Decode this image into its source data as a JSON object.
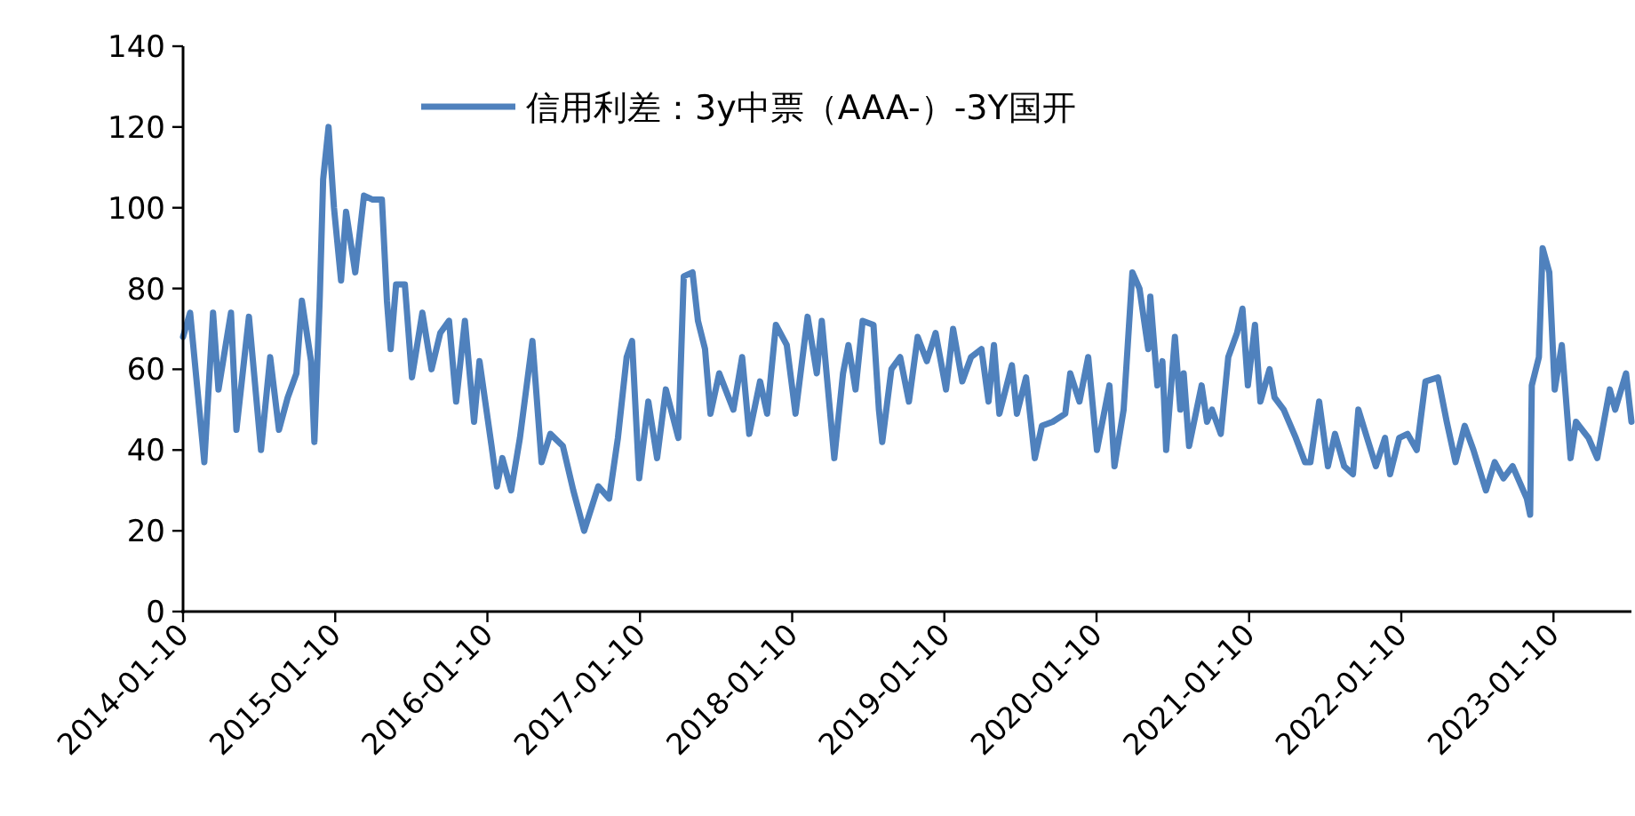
{
  "chart_data": {
    "type": "line",
    "legend": "top",
    "x": [
      "2014-01-10",
      "2014-01-27",
      "2014-03-02",
      "2014-03-23",
      "2014-04-05",
      "2014-05-05",
      "2014-05-18",
      "2014-06-17",
      "2014-07-16",
      "2014-08-07",
      "2014-08-28",
      "2014-09-18",
      "2014-10-09",
      "2014-10-22",
      "2014-11-13",
      "2014-11-21",
      "2014-12-04",
      "2014-12-12",
      "2014-12-25",
      "2015-01-07",
      "2015-01-24",
      "2015-02-05",
      "2015-02-27",
      "2015-03-20",
      "2015-04-10",
      "2015-05-02",
      "2015-05-14",
      "2015-05-23",
      "2015-06-05",
      "2015-06-26",
      "2015-07-13",
      "2015-08-07",
      "2015-08-29",
      "2015-09-19",
      "2015-10-10",
      "2015-10-27",
      "2015-11-17",
      "2015-12-09",
      "2015-12-22",
      "2016-01-20",
      "2016-02-02",
      "2016-02-15",
      "2016-03-07",
      "2016-03-28",
      "2016-04-27",
      "2016-05-19",
      "2016-06-09",
      "2016-07-09",
      "2016-08-03",
      "2016-08-29",
      "2016-10-02",
      "2016-10-28",
      "2016-11-18",
      "2016-12-09",
      "2016-12-22",
      "2017-01-08",
      "2017-01-30",
      "2017-02-20",
      "2017-03-13",
      "2017-04-12",
      "2017-04-25",
      "2017-05-16",
      "2017-05-29",
      "2017-06-15",
      "2017-06-28",
      "2017-07-19",
      "2017-08-22",
      "2017-09-12",
      "2017-09-29",
      "2017-10-25",
      "2017-11-11",
      "2017-12-02",
      "2017-12-28",
      "2018-01-18",
      "2018-02-16",
      "2018-03-10",
      "2018-03-22",
      "2018-04-21",
      "2018-05-12",
      "2018-05-25",
      "2018-06-11",
      "2018-06-28",
      "2018-07-24",
      "2018-08-06",
      "2018-08-14",
      "2018-09-05",
      "2018-09-26",
      "2018-10-17",
      "2018-11-07",
      "2018-11-29",
      "2018-12-20",
      "2019-01-14",
      "2019-01-31",
      "2019-02-22",
      "2019-03-15",
      "2019-04-09",
      "2019-04-26",
      "2019-05-09",
      "2019-05-22",
      "2019-06-21",
      "2019-07-03",
      "2019-07-25",
      "2019-08-15",
      "2019-09-01",
      "2019-09-27",
      "2019-10-27",
      "2019-11-08",
      "2019-11-30",
      "2019-12-21",
      "2020-01-11",
      "2020-02-10",
      "2020-02-22",
      "2020-03-15",
      "2020-04-05",
      "2020-04-22",
      "2020-05-13",
      "2020-05-18",
      "2020-06-04",
      "2020-06-16",
      "2020-06-25",
      "2020-07-16",
      "2020-07-29",
      "2020-08-06",
      "2020-08-19",
      "2020-09-18",
      "2020-10-01",
      "2020-10-13",
      "2020-11-03",
      "2020-11-21",
      "2020-12-12",
      "2020-12-25",
      "2021-01-07",
      "2021-01-24",
      "2021-02-06",
      "2021-02-28",
      "2021-03-12",
      "2021-04-03",
      "2021-05-02",
      "2021-05-24",
      "2021-06-06",
      "2021-06-27",
      "2021-07-18",
      "2021-08-04",
      "2021-08-26",
      "2021-09-16",
      "2021-09-29",
      "2021-10-20",
      "2021-11-10",
      "2021-12-02",
      "2021-12-14",
      "2022-01-05",
      "2022-01-25",
      "2022-02-16",
      "2022-03-09",
      "2022-04-08",
      "2022-04-29",
      "2022-05-20",
      "2022-06-11",
      "2022-07-02",
      "2022-08-01",
      "2022-08-22",
      "2022-09-12",
      "2022-10-04",
      "2022-11-07",
      "2022-11-15",
      "2022-11-19",
      "2022-12-06",
      "2022-12-15",
      "2022-12-31",
      "2023-01-13",
      "2023-01-30",
      "2023-02-20",
      "2023-03-05",
      "2023-04-04",
      "2023-04-25",
      "2023-05-25",
      "2023-06-07",
      "2023-07-03",
      "2023-07-16"
    ],
    "series": [
      {
        "name": "信用利差：3y中票（AAA-）-3Y国开",
        "color": "#4f81bd",
        "values": [
          68,
          74,
          37,
          74,
          55,
          74,
          45,
          73,
          40,
          63,
          45,
          53,
          59,
          77,
          62,
          42,
          78,
          107,
          120,
          100,
          82,
          99,
          84,
          103,
          102,
          102,
          77,
          65,
          81,
          81,
          58,
          74,
          60,
          69,
          72,
          52,
          72,
          47,
          62,
          41,
          31,
          38,
          30,
          43,
          67,
          37,
          44,
          41,
          30,
          20,
          31,
          28,
          43,
          63,
          67,
          33,
          52,
          38,
          55,
          43,
          83,
          84,
          72,
          65,
          49,
          59,
          50,
          63,
          44,
          57,
          49,
          71,
          66,
          49,
          73,
          59,
          72,
          38,
          59,
          66,
          55,
          72,
          71,
          50,
          42,
          60,
          63,
          52,
          68,
          62,
          69,
          55,
          70,
          57,
          63,
          65,
          52,
          66,
          49,
          61,
          49,
          58,
          38,
          46,
          47,
          49,
          59,
          52,
          63,
          40,
          56,
          36,
          50,
          84,
          80,
          65,
          78,
          56,
          62,
          40,
          68,
          50,
          59,
          41,
          56,
          47,
          50,
          44,
          63,
          69,
          75,
          56,
          71,
          52,
          60,
          53,
          50,
          43,
          37,
          37,
          52,
          36,
          44,
          36,
          34,
          50,
          43,
          36,
          43,
          34,
          43,
          44,
          40,
          57,
          58,
          47,
          37,
          46,
          40,
          30,
          37,
          33,
          36,
          28,
          24,
          56,
          63,
          90,
          84,
          55,
          66,
          38,
          47,
          43,
          38,
          55,
          50,
          59,
          47
        ]
      }
    ],
    "xlim": [
      "2014-01-10",
      "2023-07-16"
    ],
    "xticks": [
      "2014-01-10",
      "2015-01-10",
      "2016-01-10",
      "2017-01-10",
      "2018-01-10",
      "2019-01-10",
      "2020-01-10",
      "2021-01-10",
      "2022-01-10",
      "2023-01-10"
    ],
    "ylim": [
      0,
      140
    ],
    "yticks": [
      0,
      20,
      40,
      60,
      80,
      100,
      120,
      140
    ]
  }
}
